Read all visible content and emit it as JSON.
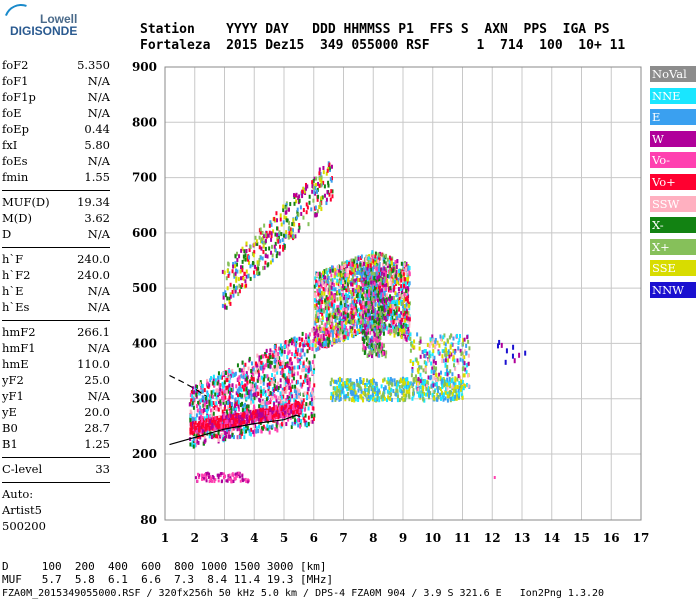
{
  "logo": {
    "top": "Lowell",
    "main": "DIGISONDE"
  },
  "header": {
    "line1": "Station    YYYY DAY   DDD HHMMSS P1  FFS S  AXN  PPS  IGA PS",
    "line2": "Fortaleza  2015 Dez15  349 055000 RSF      1  714  100  10+ 11"
  },
  "params": [
    {
      "name": "foF2",
      "value": "5.350"
    },
    {
      "name": "foF1",
      "value": "N/A"
    },
    {
      "name": "foF1p",
      "value": "N/A"
    },
    {
      "name": "foE",
      "value": "N/A"
    },
    {
      "name": "foEp",
      "value": "0.44"
    },
    {
      "name": "fxI",
      "value": "5.80"
    },
    {
      "name": "foEs",
      "value": "N/A"
    },
    {
      "name": "fmin",
      "value": "1.55"
    },
    {
      "sep": true
    },
    {
      "name": "MUF(D)",
      "value": "19.34"
    },
    {
      "name": "M(D)",
      "value": "3.62"
    },
    {
      "name": "D",
      "value": "N/A"
    },
    {
      "sep": true
    },
    {
      "name": "h`F",
      "value": "240.0"
    },
    {
      "name": "h`F2",
      "value": "240.0"
    },
    {
      "name": "h`E",
      "value": "N/A"
    },
    {
      "name": "h`Es",
      "value": "N/A"
    },
    {
      "sep": true
    },
    {
      "name": "hmF2",
      "value": "266.1"
    },
    {
      "name": "hmF1",
      "value": "N/A"
    },
    {
      "name": "hmE",
      "value": "110.0"
    },
    {
      "name": "yF2",
      "value": "25.0"
    },
    {
      "name": "yF1",
      "value": "N/A"
    },
    {
      "name": "yE",
      "value": "20.0"
    },
    {
      "name": "B0",
      "value": "28.7"
    },
    {
      "name": "B1",
      "value": "1.25"
    },
    {
      "sep": true
    },
    {
      "name": "C-level",
      "value": "33"
    },
    {
      "sep": true
    },
    {
      "name": "Auto:",
      "value": ""
    },
    {
      "name": "Artist5",
      "value": ""
    },
    {
      "name": "500200",
      "value": ""
    }
  ],
  "legend": [
    {
      "label": "NoVal",
      "color": "#8c8c8c"
    },
    {
      "label": "NNE",
      "color": "#19e6ff"
    },
    {
      "label": "E",
      "color": "#3aa0f0"
    },
    {
      "label": "W",
      "color": "#b0009a"
    },
    {
      "label": "Vo-",
      "color": "#ff40b0"
    },
    {
      "label": "Vo+",
      "color": "#ff0030"
    },
    {
      "label": "SSW",
      "color": "#ffb0c0"
    },
    {
      "label": "X-",
      "color": "#128212"
    },
    {
      "label": "X+",
      "color": "#86c05a"
    },
    {
      "label": "SSE",
      "color": "#d8dc00"
    },
    {
      "label": "NNW",
      "color": "#1a10d0"
    }
  ],
  "footer": {
    "line1": "D     100  200  400  600  800 1000 1500 3000 [km]",
    "line2": "MUF   5.7  5.8  6.1  6.6  7.3  8.4 11.4 19.3 [MHz]",
    "line3": "FZA0M_2015349055000.RSF / 320fx256h 50 kHz 5.0 km / DPS-4 FZA0M 904 / 3.9 S 321.6 E   Ion2Png 1.3.20"
  },
  "chart_data": {
    "type": "scatter",
    "xlim": [
      1,
      17
    ],
    "ylim": [
      80,
      900
    ],
    "x_ticks": [
      1,
      2,
      3,
      4,
      5,
      6,
      7,
      8,
      9,
      10,
      11,
      12,
      13,
      14,
      15,
      16,
      17
    ],
    "y_ticks": [
      80,
      200,
      300,
      400,
      500,
      600,
      700,
      800,
      900
    ],
    "grid": true,
    "clusters": [
      {
        "color": "NoVal-grey",
        "note": "echo traces approx"
      },
      {
        "region": "F trace O-mode",
        "x": [
          1.8,
          5.5
        ],
        "y": [
          235,
          310
        ],
        "colors": [
          "Vo+",
          "W",
          "Vo-"
        ]
      },
      {
        "region": "spread F",
        "x": [
          1.8,
          11.2
        ],
        "y": [
          260,
          520
        ],
        "colors": [
          "E",
          "NNE",
          "W",
          "Vo-",
          "X-",
          "X+",
          "SSE",
          "SSW"
        ]
      },
      {
        "region": "2nd hop",
        "x": [
          2.8,
          6.6
        ],
        "y": [
          480,
          730
        ],
        "colors": [
          "Vo+",
          "SSE",
          "X+",
          "E",
          "W"
        ]
      },
      {
        "region": "low echo",
        "x": [
          2.0,
          3.8
        ],
        "y": [
          145,
          170
        ],
        "colors": [
          "W",
          "Vo-"
        ]
      },
      {
        "region": "far right",
        "x": [
          12.0,
          13.1
        ],
        "y": [
          370,
          430
        ],
        "colors": [
          "NNW"
        ]
      }
    ],
    "profile_curves": [
      {
        "name": "lower",
        "points": [
          [
            1.15,
            217
          ],
          [
            2,
            230
          ],
          [
            3,
            245
          ],
          [
            4,
            255
          ],
          [
            5,
            262
          ],
          [
            5.4,
            270
          ],
          [
            5.55,
            268
          ]
        ]
      },
      {
        "name": "dashed",
        "points": [
          [
            1.15,
            342
          ],
          [
            1.6,
            330
          ],
          [
            2,
            318
          ],
          [
            2.4,
            304
          ]
        ]
      }
    ]
  }
}
